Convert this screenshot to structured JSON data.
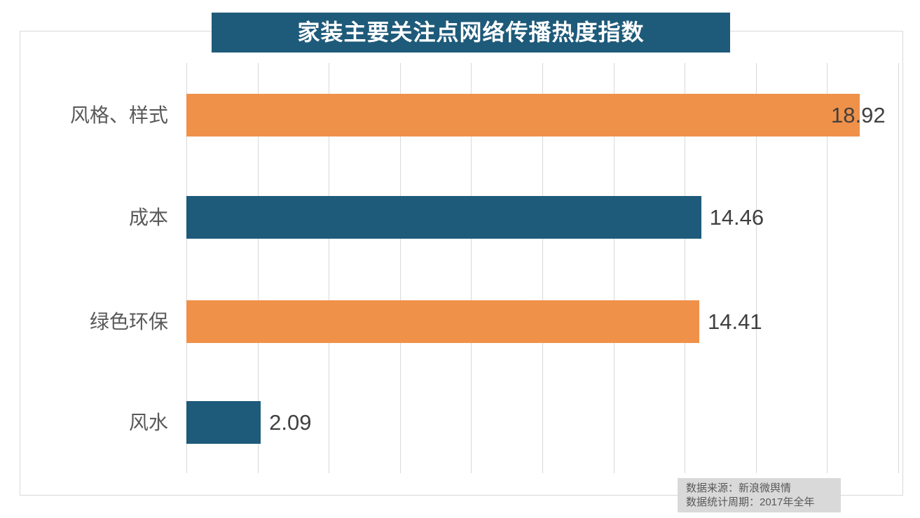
{
  "title_banner": "家装主要关注点网络传播热度指数",
  "colors": {
    "banner_bg": "#1e5a7a",
    "bar_blue": "#1e5a7a",
    "bar_orange": "#f0914a",
    "grid": "#d9d9d9",
    "category_text": "#595959",
    "value_text": "#404040",
    "source_bg": "#d9d9d9",
    "source_text": "#595959"
  },
  "chart_data": {
    "type": "bar",
    "orientation": "horizontal",
    "title": "家装主要关注点网络传播热度指数",
    "categories": [
      "风格、样式",
      "成本",
      "绿色环保",
      "风水"
    ],
    "values": [
      18.92,
      14.46,
      14.41,
      2.09
    ],
    "value_labels": [
      "18.92",
      "14.46",
      "14.41",
      "2.09"
    ],
    "bar_colors": [
      "#f0914a",
      "#1e5a7a",
      "#f0914a",
      "#1e5a7a"
    ],
    "xlabel": "",
    "ylabel": "",
    "xlim": [
      0,
      20
    ],
    "grid_interval": 2,
    "grid": true,
    "legend": false,
    "annotations": [
      "数据来源：新浪微舆情",
      "数据统计周期：2017年全年"
    ]
  },
  "source": {
    "line1": "数据来源：新浪微舆情",
    "line2": "数据统计周期：2017年全年"
  }
}
